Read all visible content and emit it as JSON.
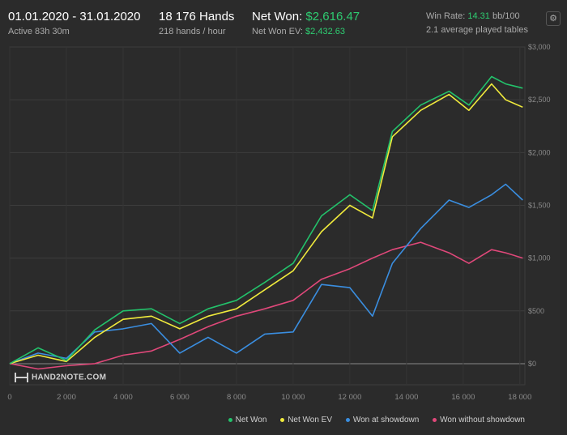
{
  "header": {
    "date_range": "01.01.2020 - 31.01.2020",
    "active": "Active 83h 30m",
    "hands": "18 176 Hands",
    "hands_per_hour": "218 hands / hour",
    "net_won_label": "Net Won:",
    "net_won_value": "$2,616.47",
    "net_won_ev_label": "Net Won  EV:",
    "net_won_ev_value": "$2,432.63",
    "win_rate_label": "Win Rate:",
    "win_rate_value": "14.31",
    "win_rate_unit": "bb/100",
    "tables": "2.1 average played tables",
    "settings_icon": "gear-icon"
  },
  "logo": {
    "text": "HAND2NOTE.COM"
  },
  "colors": {
    "net_won": "#23c26b",
    "net_won_ev": "#f0ea3c",
    "showdown": "#3a8ee0",
    "non_showdown": "#e0487a",
    "accent": "#2ecc71"
  },
  "chart_data": {
    "type": "line",
    "xlim": [
      0,
      18176
    ],
    "ylim": [
      -200,
      3000
    ],
    "x_ticks": [
      "0",
      "2 000",
      "4 000",
      "6 000",
      "8 000",
      "10 000",
      "12 000",
      "14 000",
      "16 000",
      "18 000"
    ],
    "y_ticks": [
      "$0",
      "$500",
      "$1,000",
      "$1,500",
      "$2,000",
      "$2,500",
      "$3,000"
    ],
    "grid": true,
    "legend_placement": "bottom-right",
    "series": [
      {
        "name": "Net Won",
        "color": "#23c26b",
        "x": [
          0,
          1000,
          2000,
          3000,
          4000,
          5000,
          6000,
          7000,
          8000,
          9000,
          10000,
          11000,
          12000,
          12800,
          13500,
          14500,
          15500,
          16200,
          17000,
          17500,
          18100
        ],
        "y": [
          0,
          150,
          30,
          320,
          500,
          520,
          380,
          520,
          600,
          770,
          950,
          1400,
          1600,
          1450,
          2200,
          2450,
          2580,
          2450,
          2720,
          2650,
          2610
        ]
      },
      {
        "name": "Net Won  EV",
        "color": "#f0ea3c",
        "x": [
          0,
          1000,
          2000,
          3000,
          4000,
          5000,
          6000,
          7000,
          8000,
          9000,
          10000,
          11000,
          12000,
          12800,
          13500,
          14500,
          15500,
          16200,
          17000,
          17500,
          18100
        ],
        "y": [
          0,
          80,
          20,
          250,
          420,
          450,
          330,
          450,
          520,
          700,
          880,
          1250,
          1500,
          1380,
          2150,
          2400,
          2550,
          2400,
          2650,
          2500,
          2430
        ]
      },
      {
        "name": "Won at showdown",
        "color": "#3a8ee0",
        "x": [
          0,
          1000,
          2000,
          3000,
          4000,
          5000,
          6000,
          7000,
          8000,
          9000,
          10000,
          11000,
          12000,
          12800,
          13500,
          14500,
          15500,
          16200,
          17000,
          17500,
          18100
        ],
        "y": [
          0,
          100,
          50,
          300,
          330,
          380,
          100,
          250,
          100,
          280,
          300,
          750,
          720,
          450,
          950,
          1280,
          1550,
          1480,
          1600,
          1700,
          1550
        ]
      },
      {
        "name": "Won without showdown",
        "color": "#e0487a",
        "x": [
          0,
          1000,
          2000,
          3000,
          4000,
          5000,
          6000,
          7000,
          8000,
          9000,
          10000,
          11000,
          12000,
          12800,
          13500,
          14500,
          15500,
          16200,
          17000,
          17500,
          18100
        ],
        "y": [
          0,
          -50,
          -20,
          0,
          80,
          120,
          230,
          350,
          450,
          520,
          600,
          800,
          900,
          1000,
          1080,
          1150,
          1050,
          950,
          1080,
          1050,
          1000
        ]
      }
    ]
  }
}
